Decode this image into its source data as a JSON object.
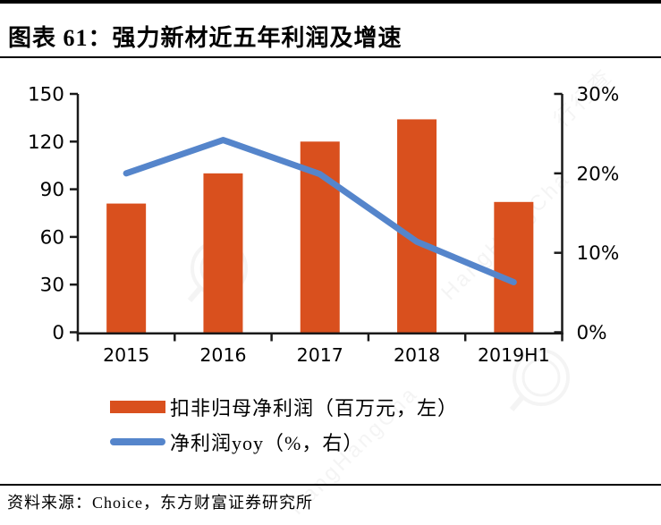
{
  "header": {
    "title": "图表 61：强力新材近五年利润及增速"
  },
  "footer": {
    "source": "资料来源：Choice，东方财富证券研究所"
  },
  "watermark": {
    "text": "行行查",
    "subtext": "HangHangCha"
  },
  "colors": {
    "bar": "#D9501E",
    "line": "#5585CB",
    "axis": "#1a1a1a",
    "text": "#000000"
  },
  "chart_data": {
    "type": "bar+line combo",
    "title": "强力新材近五年利润及增速",
    "categories": [
      "2015",
      "2016",
      "2017",
      "2018",
      "2019H1"
    ],
    "series": [
      {
        "name": "扣非归母净利润（百万元，左）",
        "type": "bar",
        "axis": "left",
        "values": [
          81,
          100,
          120,
          134,
          82
        ],
        "color": "#D9501E"
      },
      {
        "name": "净利润yoy（%，右）",
        "type": "line",
        "axis": "right",
        "values": [
          20,
          24.2,
          19.9,
          11.4,
          6.3
        ],
        "color": "#5585CB"
      }
    ],
    "left_axis": {
      "min": 0,
      "max": 150,
      "ticks": [
        0,
        30,
        60,
        90,
        120,
        150
      ],
      "tick_labels": [
        "0",
        "30",
        "60",
        "90",
        "120",
        "150"
      ]
    },
    "right_axis": {
      "min": 0,
      "max": 30,
      "ticks": [
        0,
        10,
        20,
        30
      ],
      "tick_labels": [
        "0%",
        "10%",
        "20%",
        "30%"
      ]
    },
    "grid": false,
    "legend_position": "bottom-left"
  }
}
